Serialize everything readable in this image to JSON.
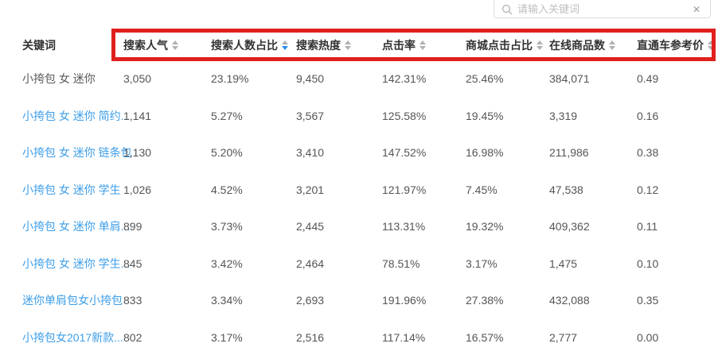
{
  "search": {
    "placeholder": "请输入关键词",
    "clear_icon": "✕"
  },
  "colors": {
    "link_blue": "#3d9ee9",
    "keyword_plain": "#595959",
    "text_gray": "#555555",
    "header_text": "#333333",
    "highlight_red": "#e0201e",
    "sort_inactive": "#b0b0b0",
    "sort_active": "#2d8cf0",
    "border_gray": "#dcdcdc",
    "placeholder_gray": "#bfbfbf"
  },
  "table": {
    "columns": [
      {
        "id": "keyword",
        "label": "关键词",
        "sortable": false,
        "sort": "none"
      },
      {
        "id": "search-popularity",
        "label": "搜索人气",
        "sortable": true,
        "sort": "none"
      },
      {
        "id": "searcher-share",
        "label": "搜索人数占比",
        "sortable": true,
        "sort": "desc"
      },
      {
        "id": "search-heat",
        "label": "搜索热度",
        "sortable": true,
        "sort": "none"
      },
      {
        "id": "click-rate",
        "label": "点击率",
        "sortable": true,
        "sort": "none"
      },
      {
        "id": "mall-click-share",
        "label": "商城点击占比",
        "sortable": true,
        "sort": "none"
      },
      {
        "id": "online-products",
        "label": "在线商品数",
        "sortable": true,
        "sort": "none"
      },
      {
        "id": "ppc-reference-price",
        "label": "直通车参考价",
        "sortable": true,
        "sort": "none"
      }
    ],
    "rows": [
      {
        "keyword": "小挎包 女 迷你",
        "style": "plain",
        "values": [
          "3,050",
          "23.19%",
          "9,450",
          "142.31%",
          "25.46%",
          "384,071",
          "0.49"
        ]
      },
      {
        "keyword": "小挎包 女 迷你 简约...",
        "style": "link",
        "values": [
          "1,141",
          "5.27%",
          "3,567",
          "125.58%",
          "19.45%",
          "3,319",
          "0.16"
        ]
      },
      {
        "keyword": "小挎包 女 迷你 链条包",
        "style": "link",
        "values": [
          "1,130",
          "5.20%",
          "3,410",
          "147.52%",
          "16.98%",
          "211,986",
          "0.38"
        ]
      },
      {
        "keyword": "小挎包 女 迷你 学生",
        "style": "link",
        "values": [
          "1,026",
          "4.52%",
          "3,201",
          "121.97%",
          "7.45%",
          "47,538",
          "0.12"
        ]
      },
      {
        "keyword": "小挎包 女 迷你 单肩...",
        "style": "link",
        "values": [
          "899",
          "3.73%",
          "2,445",
          "113.31%",
          "19.32%",
          "409,362",
          "0.11"
        ]
      },
      {
        "keyword": "小挎包 女 迷你 学生...",
        "style": "link",
        "values": [
          "845",
          "3.42%",
          "2,464",
          "78.51%",
          "3.17%",
          "1,475",
          "0.10"
        ]
      },
      {
        "keyword": "迷你单肩包女小挎包",
        "style": "link",
        "values": [
          "833",
          "3.34%",
          "2,693",
          "191.96%",
          "27.38%",
          "432,088",
          "0.35"
        ]
      },
      {
        "keyword": "小挎包女2017新款...",
        "style": "link",
        "values": [
          "802",
          "3.17%",
          "2,516",
          "117.14%",
          "16.57%",
          "2,777",
          "0.00"
        ]
      }
    ]
  }
}
